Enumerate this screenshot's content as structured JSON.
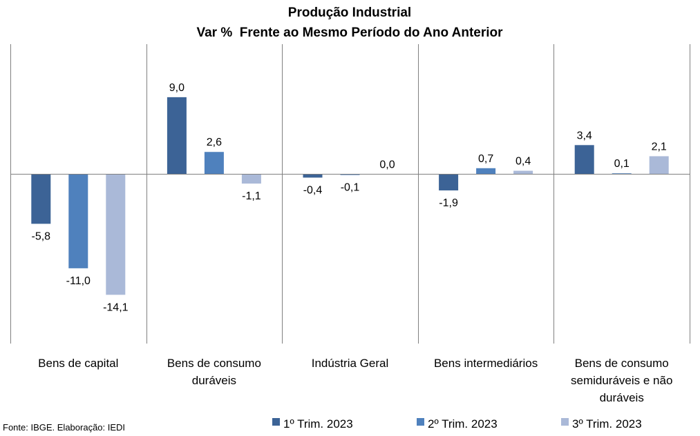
{
  "chart_data": {
    "type": "bar",
    "title": "Produção Industrial",
    "subtitle": "Var %  Frente ao Mesmo Período do Ano Anterior",
    "categories": [
      [
        "Bens de capital"
      ],
      [
        "Bens de consumo",
        "duráveis"
      ],
      [
        "Indústria Geral"
      ],
      [
        "Bens intermediários"
      ],
      [
        "Bens de consumo",
        "semiduráveis e não",
        "duráveis"
      ]
    ],
    "series": [
      {
        "name": "1º Trim. 2023",
        "color": "#3C6396",
        "values": [
          -5.8,
          9.0,
          -0.4,
          -1.9,
          3.4
        ],
        "labels": [
          "-5,8",
          "9,0",
          "-0,4",
          "-1,9",
          "3,4"
        ]
      },
      {
        "name": "2º Trim. 2023",
        "color": "#4F81BD",
        "values": [
          -11.0,
          2.6,
          -0.1,
          0.7,
          0.1
        ],
        "labels": [
          "-11,0",
          "2,6",
          "-0,1",
          "0,7",
          "0,1"
        ]
      },
      {
        "name": "3º Trim. 2023",
        "color": "#AAB9D8",
        "values": [
          -14.1,
          -1.1,
          0.0,
          0.4,
          2.1
        ],
        "labels": [
          "-14,1",
          "-1,1",
          "0,0",
          "0,4",
          "2,1"
        ]
      }
    ],
    "legend_position": "bottom",
    "grid": false,
    "ylim": [
      -19.8,
      15.2
    ]
  },
  "source": "Fonte: IBGE. Elaboração: IEDI"
}
